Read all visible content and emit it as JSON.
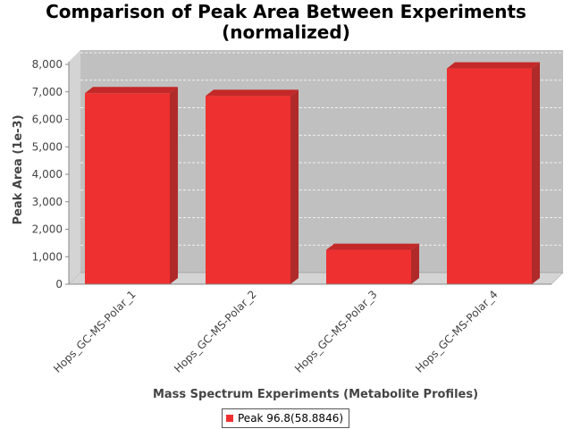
{
  "title_line1": "Comparison of Peak Area Between Experiments",
  "title_line2": "(normalized)",
  "legend_label": "Peak 96.8(58.8846)",
  "colors": {
    "bar": "#ef3030",
    "bar_top": "#c42828",
    "bar_side": "#b12a2a",
    "plot_bg": "#c0c0c0",
    "plot_wall": "#d4d4d4"
  },
  "chart_data": {
    "type": "bar",
    "title": "Comparison of Peak Area Between Experiments (normalized)",
    "xlabel": "Mass Spectrum Experiments (Metabolite Profiles)",
    "ylabel": "Peak Area (1e-3)",
    "categories": [
      "Hops_GC-MS-Polar_1",
      "Hops_GC-MS-Polar_2",
      "Hops_GC-MS-Polar_3",
      "Hops_GC-MS-Polar_4"
    ],
    "series": [
      {
        "name": "Peak 96.8(58.8846)",
        "values": [
          6950,
          6850,
          1250,
          7850
        ]
      }
    ],
    "ylim": [
      0,
      8000
    ],
    "yticks": [
      "0",
      "1,000",
      "2,000",
      "3,000",
      "4,000",
      "5,000",
      "6,000",
      "7,000",
      "8,000"
    ],
    "grid": true,
    "legend_position": "bottom"
  }
}
